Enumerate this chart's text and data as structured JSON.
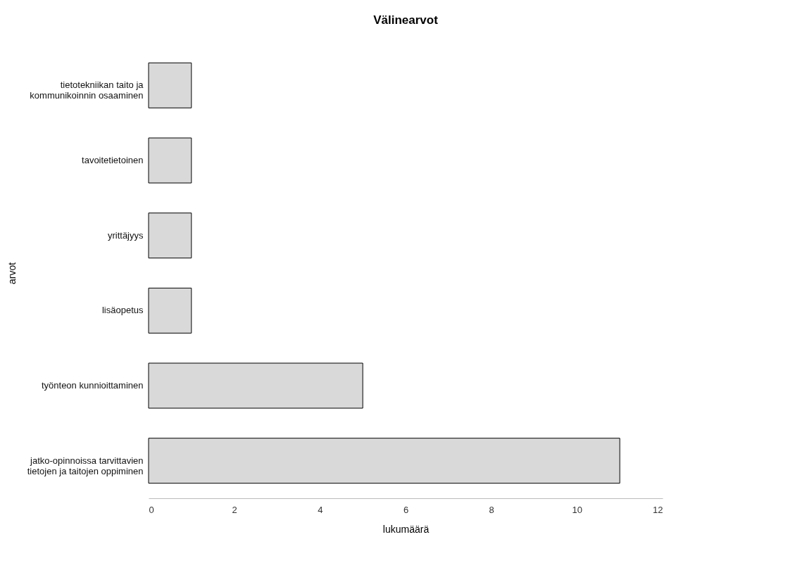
{
  "chart_data": {
    "type": "bar",
    "orientation": "horizontal",
    "title": "Välinearvot",
    "xlabel": "lukumäärä",
    "ylabel": "arvot",
    "categories": [
      "tietotekniikan taito ja kommunikoinnin osaaminen",
      "tavoitetietoinen",
      "yrittäjyys",
      "lisäopetus",
      "työnteon kunnioittaminen",
      "jatko-opinnoissa tarvittavien tietojen ja taitojen oppiminen"
    ],
    "values": [
      1,
      1,
      1,
      1,
      5,
      11
    ],
    "color": "#d9d9d9",
    "xlim": [
      0,
      12
    ],
    "xticks": [
      0,
      2,
      4,
      6,
      8,
      10,
      12
    ],
    "grid": false
  }
}
